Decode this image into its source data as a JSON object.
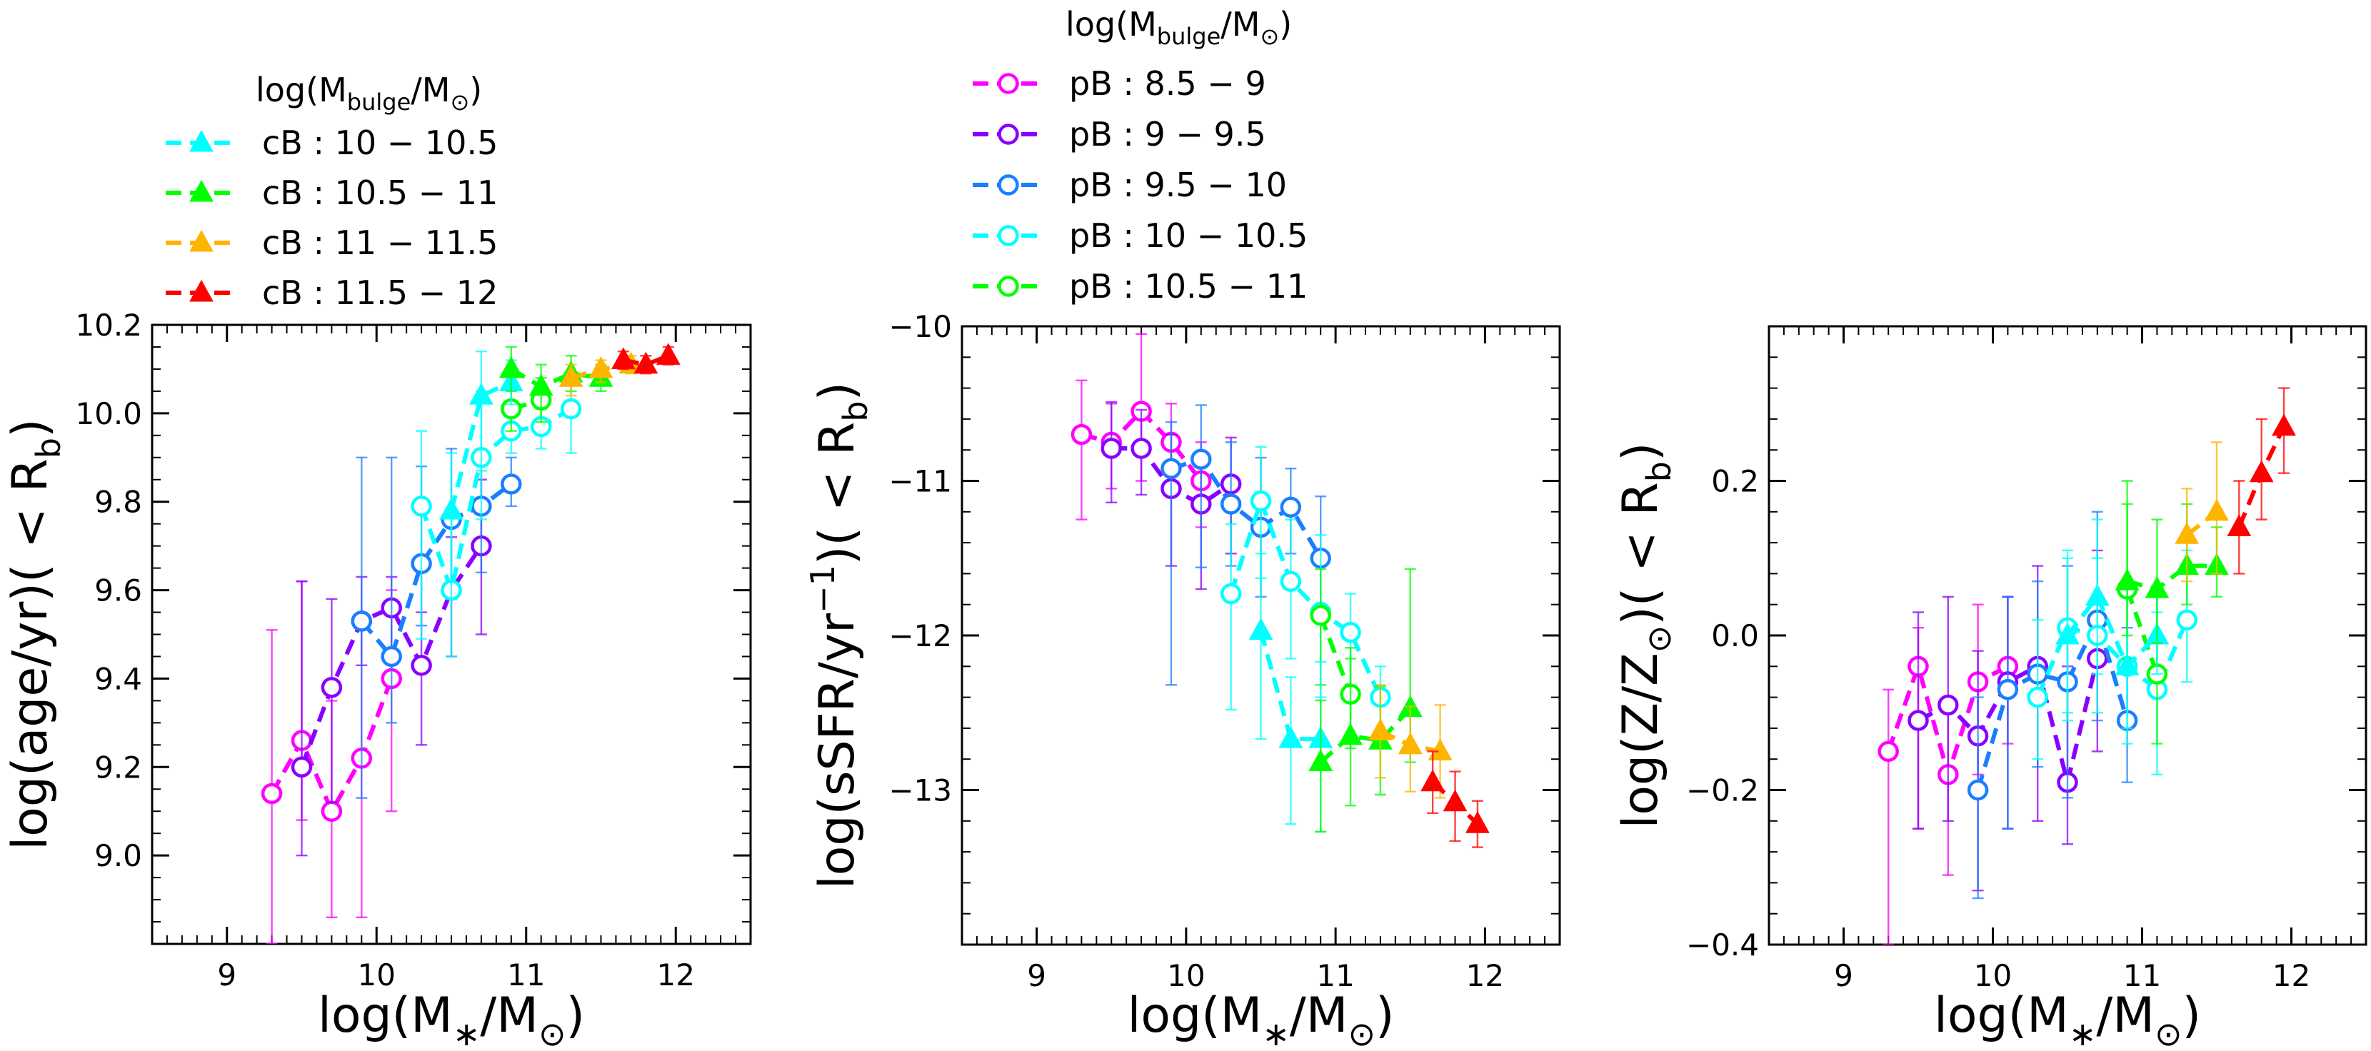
{
  "legend_cb": {
    "title_main": "log(M",
    "title_sub": "bulge",
    "title_tail": "/M",
    "title_sun_sub": "⊙",
    "title_close": ")",
    "entries": [
      "cB : 10 − 10.5",
      "cB : 10.5 − 11",
      "cB : 11 − 11.5",
      "cB : 11.5 − 12"
    ]
  },
  "legend_pb": {
    "title_main": "log(M",
    "title_sub": "bulge",
    "title_tail": "/M",
    "title_sun_sub": "⊙",
    "title_close": ")",
    "entries": [
      "pB : 8.5 − 9",
      "pB : 9 − 9.5",
      "pB : 9.5 − 10",
      "pB : 10 − 10.5",
      "pB : 10.5 − 11"
    ]
  },
  "chart_data": [
    {
      "type": "line",
      "xlabel": "log(M∗/M⊙)",
      "ylabel": "log(age/yr)( < Rb)",
      "xlim": [
        8.5,
        12.5
      ],
      "ylim": [
        8.8,
        10.2
      ],
      "xticks": [
        9,
        10,
        11,
        12
      ],
      "yticks": [
        9.0,
        9.2,
        9.4,
        9.6,
        9.8,
        10.0,
        10.2
      ],
      "ytick_labels": [
        "9.0",
        "9.2",
        "9.4",
        "9.6",
        "9.8",
        "10.0",
        "10.2"
      ],
      "series": [
        {
          "name": "pB : 8.5 − 9",
          "color": "#ff00ff",
          "marker": "circle",
          "x": [
            9.3,
            9.5,
            9.7,
            9.9,
            10.1
          ],
          "y": [
            9.14,
            9.26,
            9.1,
            9.22,
            9.4
          ],
          "err": [
            [
              0.34,
              0.37
            ],
            [
              0.18,
              0.36
            ],
            [
              0.24,
              0.25
            ],
            [
              0.36,
              0.3
            ],
            [
              0.3,
              0.2
            ]
          ]
        },
        {
          "name": "pB : 9 − 9.5",
          "color": "#8a00ff",
          "marker": "circle",
          "x": [
            9.5,
            9.7,
            9.9,
            10.1,
            10.3,
            10.5,
            10.7
          ],
          "y": [
            9.2,
            9.38,
            9.53,
            9.56,
            9.43,
            9.6,
            9.7
          ],
          "err": [
            [
              0.2,
              0.42
            ],
            [
              0.26,
              0.2
            ],
            [
              0.1,
              0.1
            ],
            [
              0.1,
              0.07
            ],
            [
              0.18,
              0.12
            ],
            [
              0.15,
              0.12
            ],
            [
              0.2,
              0.15
            ]
          ]
        },
        {
          "name": "pB : 9.5 − 10",
          "color": "#1a7fff",
          "marker": "circle",
          "x": [
            9.9,
            10.1,
            10.3,
            10.5,
            10.7,
            10.9
          ],
          "y": [
            9.53,
            9.45,
            9.66,
            9.76,
            9.79,
            9.84
          ],
          "err": [
            [
              0.4,
              0.37
            ],
            [
              0.15,
              0.45
            ],
            [
              0.14,
              0.22
            ],
            [
              0.15,
              0.16
            ],
            [
              0.15,
              0.12
            ],
            [
              0.05,
              0.06
            ]
          ]
        },
        {
          "name": "pB : 10 − 10.5",
          "color": "#00ffff",
          "marker": "circle",
          "x": [
            10.3,
            10.5,
            10.7,
            10.9,
            11.1,
            11.3
          ],
          "y": [
            9.79,
            9.6,
            9.9,
            9.96,
            9.97,
            10.01
          ],
          "err": [
            [
              0.3,
              0.17
            ],
            [
              0.15,
              0.18
            ],
            [
              0.14,
              0.15
            ],
            [
              0.05,
              0.06
            ],
            [
              0.05,
              0.06
            ],
            [
              0.1,
              0.08
            ]
          ]
        },
        {
          "name": "pB : 10.5 − 11",
          "color": "#00ff00",
          "marker": "circle",
          "x": [
            10.9,
            11.1
          ],
          "y": [
            10.01,
            10.03
          ],
          "err": [
            [
              0.05,
              0.05
            ],
            [
              0.05,
              0.05
            ]
          ]
        },
        {
          "name": "cB : 10 − 10.5",
          "color": "#00ffff",
          "marker": "triangle",
          "x": [
            10.5,
            10.7,
            10.9
          ],
          "y": [
            9.78,
            10.04,
            10.07
          ],
          "err": [
            [
              0.2,
              0.13
            ],
            [
              0.17,
              0.1
            ],
            [
              0.05,
              0.05
            ]
          ]
        },
        {
          "name": "cB : 10.5 − 11",
          "color": "#00ff00",
          "marker": "triangle",
          "x": [
            10.9,
            11.1,
            11.3,
            11.5
          ],
          "y": [
            10.1,
            10.06,
            10.09,
            10.08
          ],
          "err": [
            [
              0.05,
              0.05
            ],
            [
              0.05,
              0.05
            ],
            [
              0.04,
              0.04
            ],
            [
              0.03,
              0.03
            ]
          ]
        },
        {
          "name": "cB : 11 − 11.5",
          "color": "#ffb400",
          "marker": "triangle",
          "x": [
            11.3,
            11.5,
            11.7
          ],
          "y": [
            10.08,
            10.1,
            10.11
          ],
          "err": [
            [
              0.04,
              0.03
            ],
            [
              0.03,
              0.02
            ],
            [
              0.02,
              0.02
            ]
          ]
        },
        {
          "name": "cB : 11.5 − 12",
          "color": "#ff0000",
          "marker": "triangle",
          "x": [
            11.65,
            11.8,
            11.95
          ],
          "y": [
            10.12,
            10.11,
            10.13
          ],
          "err": [
            [
              0.02,
              0.02
            ],
            [
              0.02,
              0.02
            ],
            [
              0.02,
              0.02
            ]
          ]
        }
      ]
    },
    {
      "type": "line",
      "xlabel": "log(M∗/M⊙)",
      "ylabel": "log(sSFR/yr⁻¹)( < Rb)",
      "xlim": [
        8.5,
        12.5
      ],
      "ylim": [
        -14,
        -10
      ],
      "xticks": [
        9,
        10,
        11,
        12
      ],
      "yticks": [
        -13,
        -12,
        -11,
        -10
      ],
      "ytick_labels": [
        "−13",
        "−12",
        "−11",
        "−10"
      ],
      "series": [
        {
          "name": "pB : 8.5 − 9",
          "color": "#ff00ff",
          "marker": "circle",
          "x": [
            9.3,
            9.5,
            9.7,
            9.9,
            10.1
          ],
          "y": [
            -10.7,
            -10.75,
            -10.55,
            -10.75,
            -11.0
          ],
          "err": [
            [
              0.55,
              0.35
            ],
            [
              0.3,
              0.25
            ],
            [
              0.45,
              0.5
            ],
            [
              0.3,
              0.25
            ],
            [
              0.3,
              0.25
            ]
          ]
        },
        {
          "name": "pB : 9 − 9.5",
          "color": "#8a00ff",
          "marker": "circle",
          "x": [
            9.5,
            9.7,
            9.9,
            10.1,
            10.3
          ],
          "y": [
            -10.79,
            -10.79,
            -11.05,
            -11.15,
            -11.02
          ],
          "err": [
            [
              0.35,
              0.3
            ],
            [
              0.3,
              0.25
            ],
            [
              0.5,
              0.35
            ],
            [
              0.55,
              0.3
            ],
            [
              0.45,
              0.3
            ]
          ]
        },
        {
          "name": "pB : 9.5 − 10",
          "color": "#1a7fff",
          "marker": "circle",
          "x": [
            9.9,
            10.1,
            10.3,
            10.5,
            10.7,
            10.9
          ],
          "y": [
            -10.92,
            -10.86,
            -11.15,
            -11.3,
            -11.17,
            -11.5
          ],
          "err": [
            [
              1.4,
              0.3
            ],
            [
              0.7,
              0.35
            ],
            [
              0.4,
              0.4
            ],
            [
              0.45,
              0.45
            ],
            [
              0.3,
              0.25
            ],
            [
              0.4,
              0.4
            ]
          ]
        },
        {
          "name": "pB : 10 − 10.5",
          "color": "#00ffff",
          "marker": "circle",
          "x": [
            10.3,
            10.5,
            10.7,
            10.9,
            11.1,
            11.3
          ],
          "y": [
            -11.73,
            -11.13,
            -11.65,
            -11.85,
            -11.98,
            -12.4
          ],
          "err": [
            [
              0.75,
              0.45
            ],
            [
              0.5,
              0.35
            ],
            [
              0.5,
              0.4
            ],
            [
              0.55,
              0.5
            ],
            [
              0.35,
              0.25
            ],
            [
              0.3,
              0.2
            ]
          ]
        },
        {
          "name": "pB : 10.5 − 11",
          "color": "#00ff00",
          "marker": "circle",
          "x": [
            10.9,
            11.1
          ],
          "y": [
            -11.87,
            -12.38
          ],
          "err": [
            [
              0.45,
              0.3
            ],
            [
              0.35,
              0.3
            ]
          ]
        },
        {
          "name": "cB : 10 − 10.5",
          "color": "#00ffff",
          "marker": "triangle",
          "x": [
            10.5,
            10.7,
            10.9
          ],
          "y": [
            -11.97,
            -12.67,
            -12.67
          ],
          "err": [
            [
              0.7,
              0.5
            ],
            [
              0.55,
              0.4
            ],
            [
              0.6,
              0.5
            ]
          ]
        },
        {
          "name": "cB : 10.5 − 11",
          "color": "#00ff00",
          "marker": "triangle",
          "x": [
            10.9,
            11.1,
            11.3,
            11.5
          ],
          "y": [
            -12.82,
            -12.65,
            -12.68,
            -12.47
          ],
          "err": [
            [
              0.45,
              0.4
            ],
            [
              0.45,
              0.5
            ],
            [
              0.35,
              0.35
            ],
            [
              0.35,
              0.9
            ]
          ]
        },
        {
          "name": "cB : 11 − 11.5",
          "color": "#ffb400",
          "marker": "triangle",
          "x": [
            11.3,
            11.5,
            11.7
          ],
          "y": [
            -12.62,
            -12.71,
            -12.75
          ],
          "err": [
            [
              0.3,
              0.3
            ],
            [
              0.3,
              0.25
            ],
            [
              0.3,
              0.3
            ]
          ]
        },
        {
          "name": "cB : 11.5 − 12",
          "color": "#ff0000",
          "marker": "triangle",
          "x": [
            11.65,
            11.8,
            11.95
          ],
          "y": [
            -12.95,
            -13.08,
            -13.22
          ],
          "err": [
            [
              0.2,
              0.2
            ],
            [
              0.25,
              0.2
            ],
            [
              0.15,
              0.15
            ]
          ]
        }
      ]
    },
    {
      "type": "line",
      "xlabel": "log(M∗/M⊙)",
      "ylabel": "log(Z/Z⊙)( < Rb)",
      "xlim": [
        8.5,
        12.5
      ],
      "ylim": [
        -0.4,
        0.4
      ],
      "xticks": [
        9,
        10,
        11,
        12
      ],
      "yticks": [
        -0.4,
        -0.2,
        0.0,
        0.2
      ],
      "ytick_labels": [
        "−0.4",
        "−0.2",
        "0.0",
        "0.2"
      ],
      "series": [
        {
          "name": "pB : 8.5 − 9",
          "color": "#ff00ff",
          "marker": "circle",
          "x": [
            9.3,
            9.5,
            9.7,
            9.9,
            10.1
          ],
          "y": [
            -0.15,
            -0.04,
            -0.18,
            -0.06,
            -0.04
          ],
          "err": [
            [
              0.25,
              0.08
            ],
            [
              0.21,
              0.05
            ],
            [
              0.13,
              0.1
            ],
            [
              0.12,
              0.1
            ],
            [
              0.1,
              0.09
            ]
          ]
        },
        {
          "name": "pB : 9 − 9.5",
          "color": "#8a00ff",
          "marker": "circle",
          "x": [
            9.5,
            9.7,
            9.9,
            10.1,
            10.3,
            10.5,
            10.7
          ],
          "y": [
            -0.11,
            -0.09,
            -0.13,
            -0.06,
            -0.04,
            -0.19,
            -0.03
          ],
          "err": [
            [
              0.14,
              0.14
            ],
            [
              0.15,
              0.14
            ],
            [
              0.2,
              0.11
            ],
            [
              0.19,
              0.11
            ],
            [
              0.2,
              0.13
            ],
            [
              0.08,
              0.15
            ],
            [
              0.12,
              0.14
            ]
          ]
        },
        {
          "name": "pB : 9.5 − 10",
          "color": "#1a7fff",
          "marker": "circle",
          "x": [
            9.9,
            10.1,
            10.3,
            10.5,
            10.7,
            10.9
          ],
          "y": [
            -0.2,
            -0.07,
            -0.05,
            -0.06,
            0.02,
            -0.11
          ],
          "err": [
            [
              0.14,
              0.12
            ],
            [
              0.18,
              0.12
            ],
            [
              0.12,
              0.12
            ],
            [
              0.15,
              0.15
            ],
            [
              0.13,
              0.14
            ],
            [
              0.08,
              0.12
            ]
          ]
        },
        {
          "name": "pB : 10 − 10.5",
          "color": "#00ffff",
          "marker": "circle",
          "x": [
            10.3,
            10.5,
            10.7,
            10.9,
            11.1,
            11.3
          ],
          "y": [
            -0.08,
            0.01,
            0.0,
            -0.04,
            -0.07,
            0.02
          ],
          "err": [
            [
              0.08,
              0.1
            ],
            [
              0.12,
              0.1
            ],
            [
              0.1,
              0.1
            ],
            [
              0.1,
              0.11
            ],
            [
              0.11,
              0.1
            ],
            [
              0.08,
              0.09
            ]
          ]
        },
        {
          "name": "pB : 10.5 − 11",
          "color": "#00ff00",
          "marker": "circle",
          "x": [
            10.9,
            11.1
          ],
          "y": [
            0.06,
            -0.05
          ],
          "err": [
            [
              0.09,
              0.14
            ],
            [
              0.09,
              0.1
            ]
          ]
        },
        {
          "name": "cB : 10 − 10.5",
          "color": "#00ffff",
          "marker": "triangle",
          "x": [
            10.5,
            10.7,
            10.9,
            11.1
          ],
          "y": [
            0.0,
            0.05,
            -0.04,
            0.0
          ],
          "err": [
            [
              0.1,
              0.1
            ],
            [
              0.1,
              0.1
            ],
            [
              0.08,
              0.1
            ],
            [
              0.05,
              0.06
            ]
          ]
        },
        {
          "name": "cB : 10.5 − 11",
          "color": "#00ff00",
          "marker": "triangle",
          "x": [
            10.9,
            11.1,
            11.3,
            11.5
          ],
          "y": [
            0.07,
            0.06,
            0.09,
            0.09
          ],
          "err": [
            [
              0.07,
              0.1
            ],
            [
              0.07,
              0.09
            ],
            [
              0.05,
              0.08
            ],
            [
              0.04,
              0.05
            ]
          ]
        },
        {
          "name": "cB : 11 − 11.5",
          "color": "#ffb400",
          "marker": "triangle",
          "x": [
            11.3,
            11.5
          ],
          "y": [
            0.13,
            0.16
          ],
          "err": [
            [
              0.06,
              0.06
            ],
            [
              0.08,
              0.09
            ]
          ]
        },
        {
          "name": "cB : 11.5 − 12",
          "color": "#ff0000",
          "marker": "triangle",
          "x": [
            11.65,
            11.8,
            11.95
          ],
          "y": [
            0.14,
            0.21,
            0.27
          ],
          "err": [
            [
              0.06,
              0.06
            ],
            [
              0.06,
              0.07
            ],
            [
              0.06,
              0.05
            ]
          ]
        }
      ]
    }
  ]
}
